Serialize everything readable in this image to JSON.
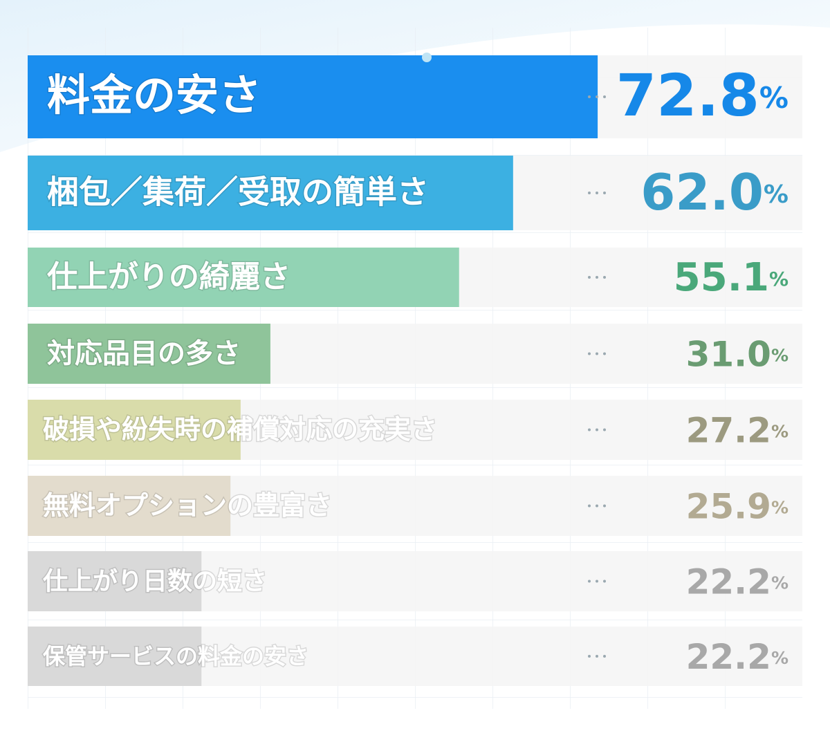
{
  "chart_data": {
    "type": "bar",
    "orientation": "horizontal",
    "categories": [
      "料金の安さ",
      "梱包／集荷／受取の簡単さ",
      "仕上がりの綺麗さ",
      "対応品目の多さ",
      "破損や紛失時の補償対応の充実さ",
      "無料オプションの豊富さ",
      "仕上がり日数の短さ",
      "保管サービスの料金の安さ"
    ],
    "values": [
      72.8,
      62.0,
      55.1,
      31.0,
      27.2,
      25.9,
      22.2,
      22.2
    ],
    "value_labels": [
      "72.8%",
      "62.0%",
      "55.1%",
      "31.0%",
      "27.2%",
      "25.9%",
      "22.2%",
      "22.2%"
    ],
    "colors": [
      "#1a8eef",
      "#3cb0e2",
      "#92d3b4",
      "#8fc49a",
      "#d9dcaa",
      "#e3dccd",
      "#d9d9d9",
      "#d9d9d9"
    ],
    "label_colors": [
      "#1688e8",
      "#3a9cc8",
      "#4aa87a",
      "#6a9c72",
      "#9c9a80",
      "#b2aa92",
      "#a8a8a8",
      "#a8a8a8"
    ],
    "xlim": [
      0,
      100
    ]
  }
}
